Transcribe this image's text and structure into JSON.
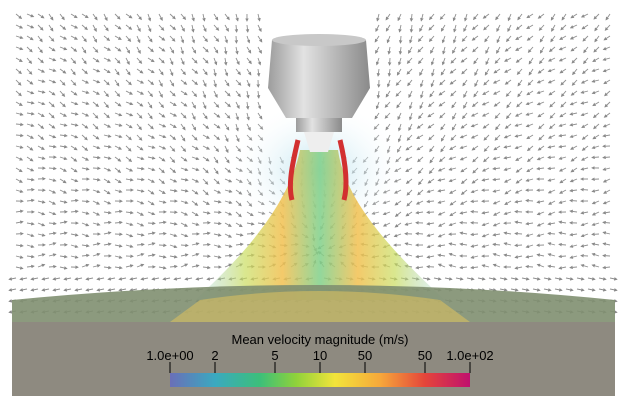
{
  "colorbar": {
    "title": "Mean velocity magnitude (m/s)",
    "tick_labels": [
      "1.0e+00",
      "2",
      "5",
      "10",
      "50",
      "50",
      "1.0e+02"
    ]
  }
}
